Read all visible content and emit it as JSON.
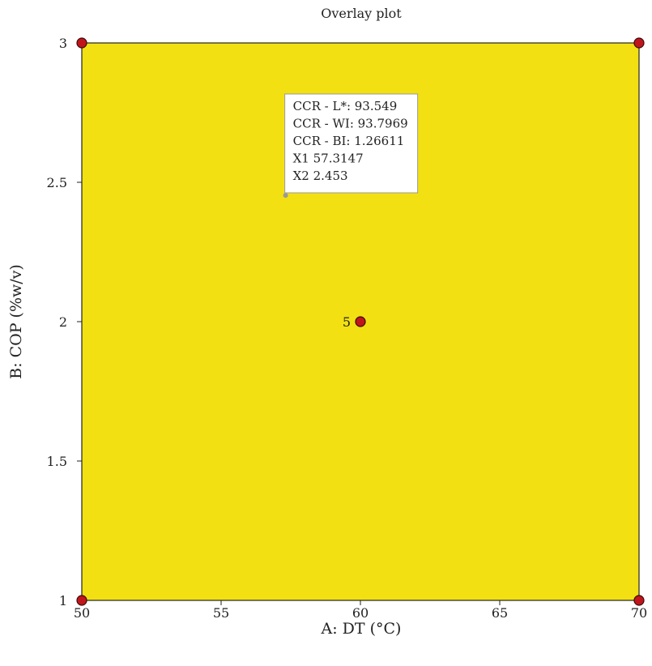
{
  "chart_data": {
    "type": "contour",
    "title": "Overlay plot",
    "xlabel": "A: DT (°C)",
    "ylabel": "B: COP (%w/v)",
    "xlim": [
      50,
      70
    ],
    "ylim": [
      1,
      3
    ],
    "xticks": [
      "50",
      "55",
      "60",
      "65",
      "70"
    ],
    "yticks": [
      "1",
      "1.5",
      "2",
      "2.5",
      "3"
    ],
    "region_color": "#f2e012",
    "design_points": [
      {
        "x": 50,
        "y": 3,
        "label": ""
      },
      {
        "x": 70,
        "y": 3,
        "label": ""
      },
      {
        "x": 60,
        "y": 2,
        "label": "5"
      },
      {
        "x": 50,
        "y": 1,
        "label": ""
      },
      {
        "x": 70,
        "y": 1,
        "label": ""
      }
    ],
    "point_color": "#c0161b",
    "flag": {
      "x": 57.3147,
      "y": 2.453,
      "lines": [
        "CCR - L*: 93.549",
        "CCR - WI: 93.7969",
        "CCR - BI: 1.26611",
        "X1 57.3147",
        "X2 2.453"
      ]
    }
  }
}
